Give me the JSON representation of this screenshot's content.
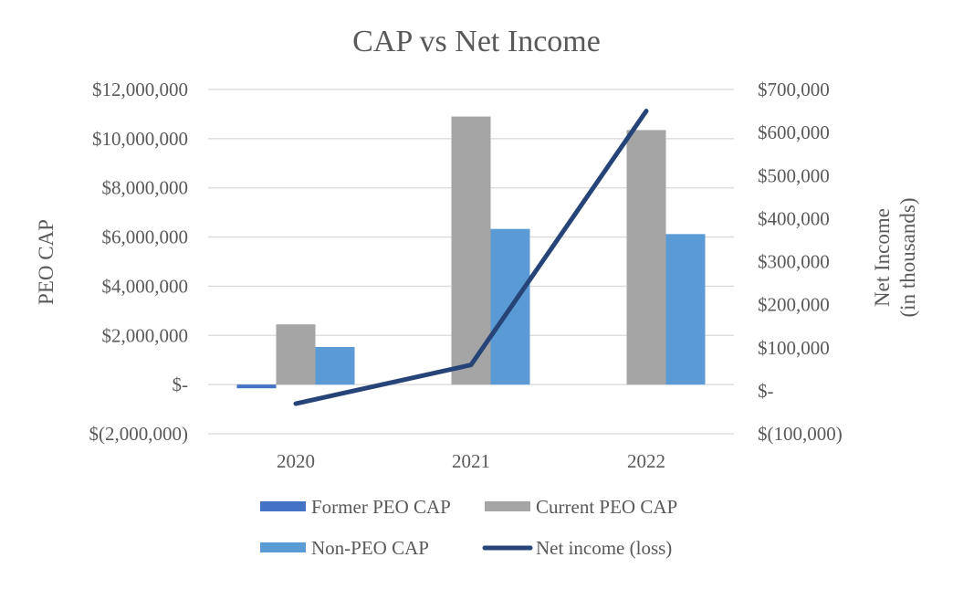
{
  "chart_data": {
    "type": "bar",
    "title": "CAP vs Net Income",
    "categories": [
      "2020",
      "2021",
      "2022"
    ],
    "ylabel": "PEO CAP",
    "y2label_line1": "Net Income",
    "y2label_line2": "(in thousands)",
    "ylim": [
      -2000000,
      12000000
    ],
    "y2lim": [
      -100000,
      700000
    ],
    "yticks": [
      -2000000,
      0,
      2000000,
      4000000,
      6000000,
      8000000,
      10000000,
      12000000
    ],
    "ytick_labels": [
      "$(2,000,000)",
      "$-",
      "$2,000,000",
      "$4,000,000",
      "$6,000,000",
      "$8,000,000",
      "$10,000,000",
      "$12,000,000"
    ],
    "y2ticks": [
      -100000,
      0,
      100000,
      200000,
      300000,
      400000,
      500000,
      600000,
      700000
    ],
    "y2tick_labels": [
      "$(100,000)",
      "$-",
      "$100,000",
      "$200,000",
      "$300,000",
      "$400,000",
      "$500,000",
      "$600,000",
      "$700,000"
    ],
    "grid": true,
    "series": [
      {
        "name": "Former PEO CAP",
        "type": "bar",
        "axis": "left",
        "color": "#4472C4",
        "values": [
          -150000,
          null,
          null
        ]
      },
      {
        "name": "Current PEO CAP",
        "type": "bar",
        "axis": "left",
        "color": "#A5A5A5",
        "values": [
          2450000,
          10900000,
          10350000
        ]
      },
      {
        "name": "Non-PEO CAP",
        "type": "bar",
        "axis": "left",
        "color": "#5B9BD5",
        "values": [
          1530000,
          6330000,
          6120000
        ]
      },
      {
        "name": "Net income (loss)",
        "type": "line",
        "axis": "right",
        "color": "#264478",
        "values": [
          -30000,
          60000,
          650000
        ]
      }
    ],
    "legend_position": "bottom"
  }
}
